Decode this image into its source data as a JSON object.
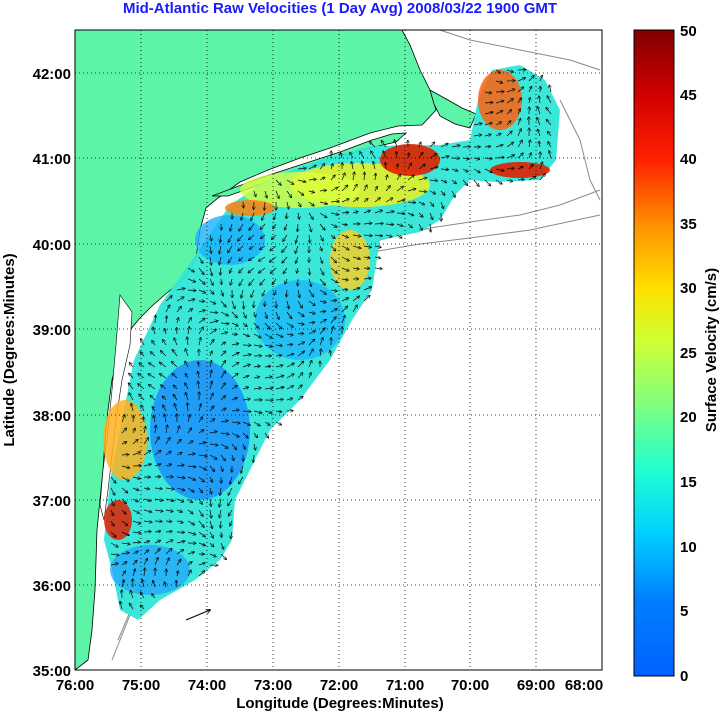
{
  "title": "Mid-Atlantic Raw Velocities (1 Day Avg) 2008/03/22 1900 GMT",
  "xlabel": "Longitude (Degrees:Minutes)",
  "ylabel": "Latitude (Degrees:Minutes)",
  "x_ticks": [
    "76:00",
    "75:00",
    "74:00",
    "73:00",
    "72:00",
    "71:00",
    "70:00",
    "69:00",
    "68:00"
  ],
  "y_ticks": [
    "35:00",
    "36:00",
    "37:00",
    "38:00",
    "39:00",
    "40:00",
    "41:00",
    "42:00"
  ],
  "colorbar": {
    "label": "Surface Velocity (cm/s)",
    "ticks": [
      "0",
      "5",
      "10",
      "15",
      "20",
      "25",
      "30",
      "35",
      "40",
      "45",
      "50"
    ],
    "range": [
      0,
      50
    ]
  },
  "map": {
    "lon_range": [
      -76,
      -68
    ],
    "lat_range": [
      35,
      42.5
    ],
    "land_color": "#5cf5a8",
    "ocean_color": "#ffffff",
    "coast_color": "#000000",
    "grid": "dotted"
  }
}
